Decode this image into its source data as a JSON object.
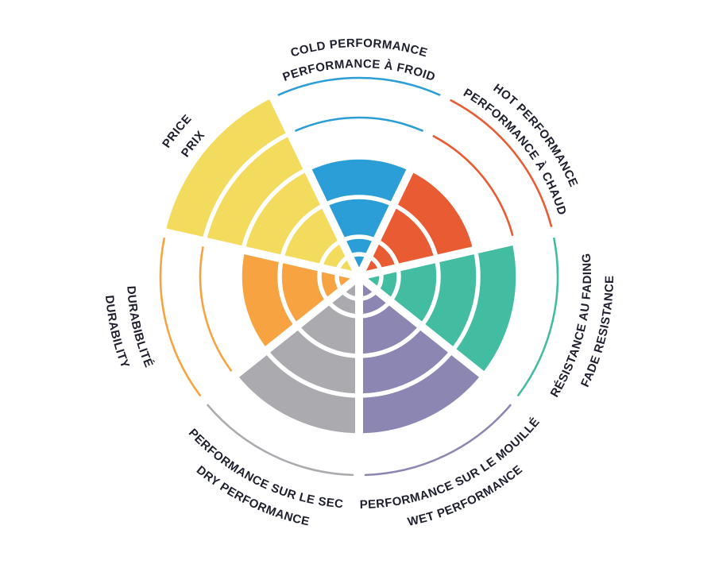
{
  "page": {
    "background": "#FFFFFF",
    "text_color": "#1E1F2E"
  },
  "chart_data": {
    "type": "polar-sector-rating-wheel",
    "title": "",
    "rings": 5,
    "max_value": 5,
    "direction": "clockwise",
    "start_position": "top",
    "grid": "white ring dividers inside filled sectors, thin colored arcs for unfilled ring levels",
    "legend_position": "labels curved around outer rim, English outer line / French inner line",
    "categories": [
      {
        "id": "cold",
        "label_en": "COLD PERFORMANCE",
        "label_fr": "PERFORMANCE À FROID",
        "value": 3,
        "color": "#2B9ED7"
      },
      {
        "id": "hot",
        "label_en": "HOT PERFORMANCE",
        "label_fr": "PERFORMANCE À CHAUD",
        "value": 3,
        "color": "#E95C33"
      },
      {
        "id": "fade",
        "label_en": "FADE RESISTANCE",
        "label_fr": "RÉSISTANCE AU FADING",
        "value": 4,
        "color": "#43BDA2"
      },
      {
        "id": "wet",
        "label_en": "WET PERFORMANCE",
        "label_fr": "PERFORMANCE SUR LE MOUILLÉ",
        "value": 4,
        "color": "#8C86B3"
      },
      {
        "id": "dry",
        "label_en": "DRY PERFORMANCE",
        "label_fr": "PERFORMANCE SUR LE SEC",
        "value": 4,
        "color": "#ABAAAE"
      },
      {
        "id": "durability",
        "label_en": "DURABILITY",
        "label_fr": "DURABIBLITÉ",
        "value": 3,
        "color": "#F8A342"
      },
      {
        "id": "price",
        "label_en": "PRICE",
        "label_fr": "PRIX",
        "value": 5,
        "color": "#F3DB5E"
      }
    ]
  }
}
